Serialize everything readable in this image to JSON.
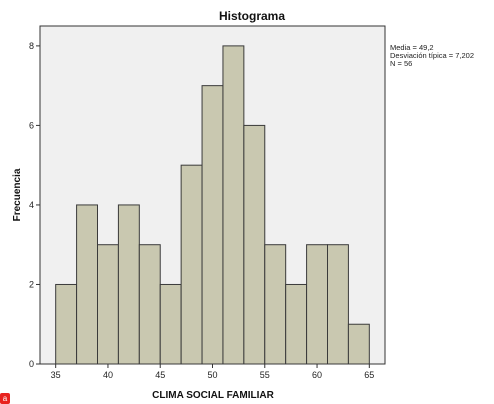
{
  "chart_data": {
    "type": "bar",
    "title": "Histograma",
    "xlabel": "CLIMA SOCIAL FAMILIAR",
    "ylabel": "Frecuencia",
    "bins": [
      {
        "start": 35,
        "end": 37,
        "count": 2
      },
      {
        "start": 37,
        "end": 39,
        "count": 4
      },
      {
        "start": 39,
        "end": 41,
        "count": 3
      },
      {
        "start": 41,
        "end": 43,
        "count": 4
      },
      {
        "start": 43,
        "end": 45,
        "count": 3
      },
      {
        "start": 45,
        "end": 47,
        "count": 2
      },
      {
        "start": 47,
        "end": 49,
        "count": 5
      },
      {
        "start": 49,
        "end": 51,
        "count": 7
      },
      {
        "start": 51,
        "end": 53,
        "count": 8
      },
      {
        "start": 53,
        "end": 55,
        "count": 6
      },
      {
        "start": 55,
        "end": 57,
        "count": 3
      },
      {
        "start": 57,
        "end": 59,
        "count": 2
      },
      {
        "start": 59,
        "end": 61,
        "count": 3
      },
      {
        "start": 61,
        "end": 63,
        "count": 3
      },
      {
        "start": 63,
        "end": 65,
        "count": 1
      }
    ],
    "xticks": [
      "35",
      "40",
      "45",
      "50",
      "55",
      "60",
      "65"
    ],
    "yticks": [
      "0",
      "2",
      "4",
      "6",
      "8"
    ],
    "xlim": [
      33.5,
      66.5
    ],
    "ylim": [
      0,
      8.5
    ],
    "grid": false,
    "stats": {
      "media": "Media = 49,2",
      "desviacion": "Desviación típica = 7,202",
      "n": "N = 56"
    },
    "colors": {
      "bar_fill": "#c9c8b0",
      "plot_background": "#f0f0f0"
    }
  }
}
